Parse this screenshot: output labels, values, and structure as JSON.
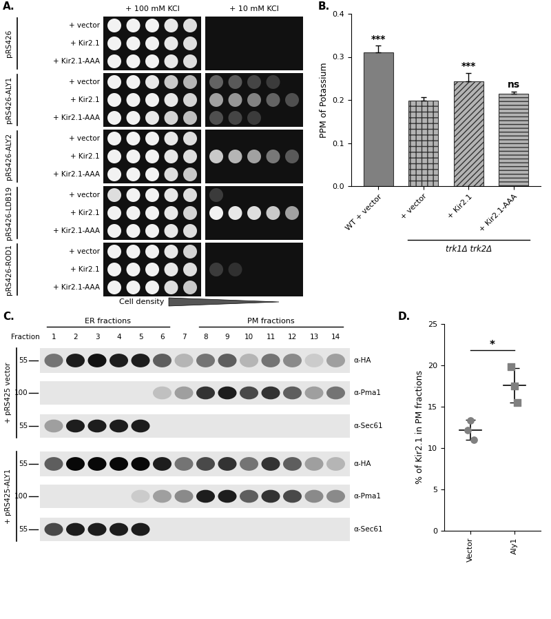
{
  "panel_labels": [
    "A.",
    "B.",
    "C.",
    "D."
  ],
  "spot_assay": {
    "conditions": [
      "+ 100 mM KCl",
      "+ 10 mM KCl"
    ],
    "footer": "Cell density",
    "groups": [
      {
        "label": "pRS426",
        "rows": [
          {
            "label": "+ vector",
            "growth": [
              [
                1,
                1,
                1,
                0.95,
                0.9
              ],
              [
                0,
                0,
                0,
                0,
                0
              ]
            ]
          },
          {
            "label": "+ Kir2.1",
            "growth": [
              [
                1,
                1,
                1,
                0.95,
                0.9
              ],
              [
                0,
                0,
                0,
                0,
                0
              ]
            ]
          },
          {
            "label": "+ Kir2.1-AAA",
            "growth": [
              [
                1,
                1,
                1,
                0.95,
                0.9
              ],
              [
                0,
                0,
                0,
                0,
                0
              ]
            ]
          }
        ]
      },
      {
        "label": "pRS426-ALY1",
        "rows": [
          {
            "label": "+ vector",
            "growth": [
              [
                1,
                1,
                0.95,
                0.8,
                0.7
              ],
              [
                0.3,
                0.25,
                0.15,
                0.1,
                0
              ]
            ]
          },
          {
            "label": "+ Kir2.1",
            "growth": [
              [
                1,
                1,
                1,
                0.95,
                0.85
              ],
              [
                0.6,
                0.55,
                0.45,
                0.3,
                0.2
              ]
            ]
          },
          {
            "label": "+ Kir2.1-AAA",
            "growth": [
              [
                1,
                1,
                0.95,
                0.85,
                0.75
              ],
              [
                0.2,
                0.15,
                0.1,
                0,
                0
              ]
            ]
          }
        ]
      },
      {
        "label": "pRS426-ALY2",
        "rows": [
          {
            "label": "+ vector",
            "growth": [
              [
                1,
                1,
                1,
                0.95,
                0.9
              ],
              [
                0,
                0,
                0,
                0,
                0
              ]
            ]
          },
          {
            "label": "+ Kir2.1",
            "growth": [
              [
                1,
                1,
                1,
                0.95,
                0.9
              ],
              [
                0.8,
                0.7,
                0.6,
                0.4,
                0.25
              ]
            ]
          },
          {
            "label": "+ Kir2.1-AAA",
            "growth": [
              [
                1,
                1,
                1,
                0.9,
                0.8
              ],
              [
                0,
                0,
                0,
                0,
                0
              ]
            ]
          }
        ]
      },
      {
        "label": "pRS426-LDB19",
        "rows": [
          {
            "label": "+ vector",
            "growth": [
              [
                0.9,
                1,
                1,
                0.95,
                0.9
              ],
              [
                0.1,
                0,
                0,
                0,
                0
              ]
            ]
          },
          {
            "label": "+ Kir2.1",
            "growth": [
              [
                1,
                1,
                1,
                0.95,
                0.85
              ],
              [
                1,
                0.95,
                0.9,
                0.8,
                0.6
              ]
            ]
          },
          {
            "label": "+ Kir2.1-AAA",
            "growth": [
              [
                1,
                1,
                1,
                0.95,
                0.9
              ],
              [
                0,
                0,
                0,
                0,
                0
              ]
            ]
          }
        ]
      },
      {
        "label": "pRS426-ROD1",
        "rows": [
          {
            "label": "+ vector",
            "growth": [
              [
                1,
                1,
                1,
                0.95,
                0.85
              ],
              [
                0,
                0,
                0,
                0,
                0
              ]
            ]
          },
          {
            "label": "+ Kir2.1",
            "growth": [
              [
                1,
                1,
                1,
                0.95,
                0.9
              ],
              [
                0.1,
                0.05,
                0,
                0,
                0
              ]
            ]
          },
          {
            "label": "+ Kir2.1-AAA",
            "growth": [
              [
                1,
                1,
                1,
                0.9,
                0.8
              ],
              [
                0,
                0,
                0,
                0,
                0
              ]
            ]
          }
        ]
      }
    ]
  },
  "chart_data": [
    {
      "type": "bar",
      "categories": [
        "WT + vector",
        "+ vector",
        "+ Kir2.1",
        "+ Kir2.1-AAA"
      ],
      "values": [
        0.31,
        0.198,
        0.243,
        0.215
      ],
      "errors": [
        0.016,
        0.008,
        0.02,
        0.005
      ],
      "colors": [
        "#808080",
        "#b3b3b3",
        "#b3b3b3",
        "#b3b3b3"
      ],
      "ylabel": "PPM of Potassium",
      "ylim": [
        0.0,
        0.4
      ],
      "yticks": [
        0.0,
        0.1,
        0.2,
        0.3,
        0.4
      ],
      "annotations": [
        "***",
        null,
        "***",
        "ns"
      ],
      "group_label": {
        "text": "trk1Δ trk2Δ",
        "categories": [
          1,
          3
        ]
      }
    },
    {
      "type": "scatter",
      "categories": [
        "Vector",
        "Aly1"
      ],
      "values": [
        [
          12.2,
          13.3,
          11.0
        ],
        [
          19.8,
          17.5,
          15.5
        ]
      ],
      "means": [
        12.2,
        17.6
      ],
      "errors": [
        1.2,
        2.1
      ],
      "colors": [
        "#808080",
        "#808080"
      ],
      "ylabel": "% of Kir2.1 in PM fractions",
      "ylim": [
        0,
        25
      ],
      "yticks": [
        0,
        5,
        10,
        15,
        20,
        25
      ],
      "annotations": [
        {
          "text": "*",
          "categories": [
            0,
            1
          ]
        }
      ]
    }
  ],
  "western_blot": {
    "header_groups": [
      {
        "label": "ER fractions",
        "fractions": [
          1,
          6
        ]
      },
      {
        "label": "PM fractions",
        "fractions": [
          8,
          14
        ]
      }
    ],
    "fraction_label": "Fraction",
    "fractions": [
      1,
      2,
      3,
      4,
      5,
      6,
      7,
      8,
      9,
      10,
      11,
      12,
      13,
      14
    ],
    "groups": [
      {
        "label": "+ pRS425 vector",
        "blots": [
          {
            "antibody": "α-HA",
            "mw": 55,
            "bands": [
              0.5,
              0.9,
              0.95,
              0.9,
              0.9,
              0.6,
              0.2,
              0.5,
              0.6,
              0.2,
              0.5,
              0.4,
              0.1,
              0.3
            ]
          },
          {
            "antibody": "α-Pma1",
            "mw": 100,
            "bands": [
              0,
              0,
              0,
              0,
              0,
              0.15,
              0.3,
              0.8,
              0.9,
              0.7,
              0.8,
              0.6,
              0.3,
              0.5
            ]
          },
          {
            "antibody": "α-Sec61",
            "mw": 55,
            "bands": [
              0.3,
              0.9,
              0.9,
              0.9,
              0.9,
              0,
              0,
              0,
              0,
              0,
              0,
              0,
              0,
              0
            ]
          }
        ]
      },
      {
        "label": "+ pRS425-ALY1",
        "blots": [
          {
            "antibody": "α-HA",
            "mw": 55,
            "bands": [
              0.6,
              1,
              1,
              1,
              1,
              0.9,
              0.5,
              0.7,
              0.8,
              0.5,
              0.8,
              0.6,
              0.3,
              0.2
            ]
          },
          {
            "antibody": "α-Pma1",
            "mw": 100,
            "bands": [
              0,
              0,
              0,
              0,
              0.1,
              0.3,
              0.4,
              0.9,
              0.9,
              0.6,
              0.8,
              0.7,
              0.4,
              0.4
            ]
          },
          {
            "antibody": "α-Sec61",
            "mw": 55,
            "bands": [
              0.7,
              0.9,
              0.9,
              0.9,
              0.9,
              0,
              0,
              0,
              0,
              0,
              0,
              0,
              0,
              0
            ]
          }
        ]
      }
    ]
  }
}
